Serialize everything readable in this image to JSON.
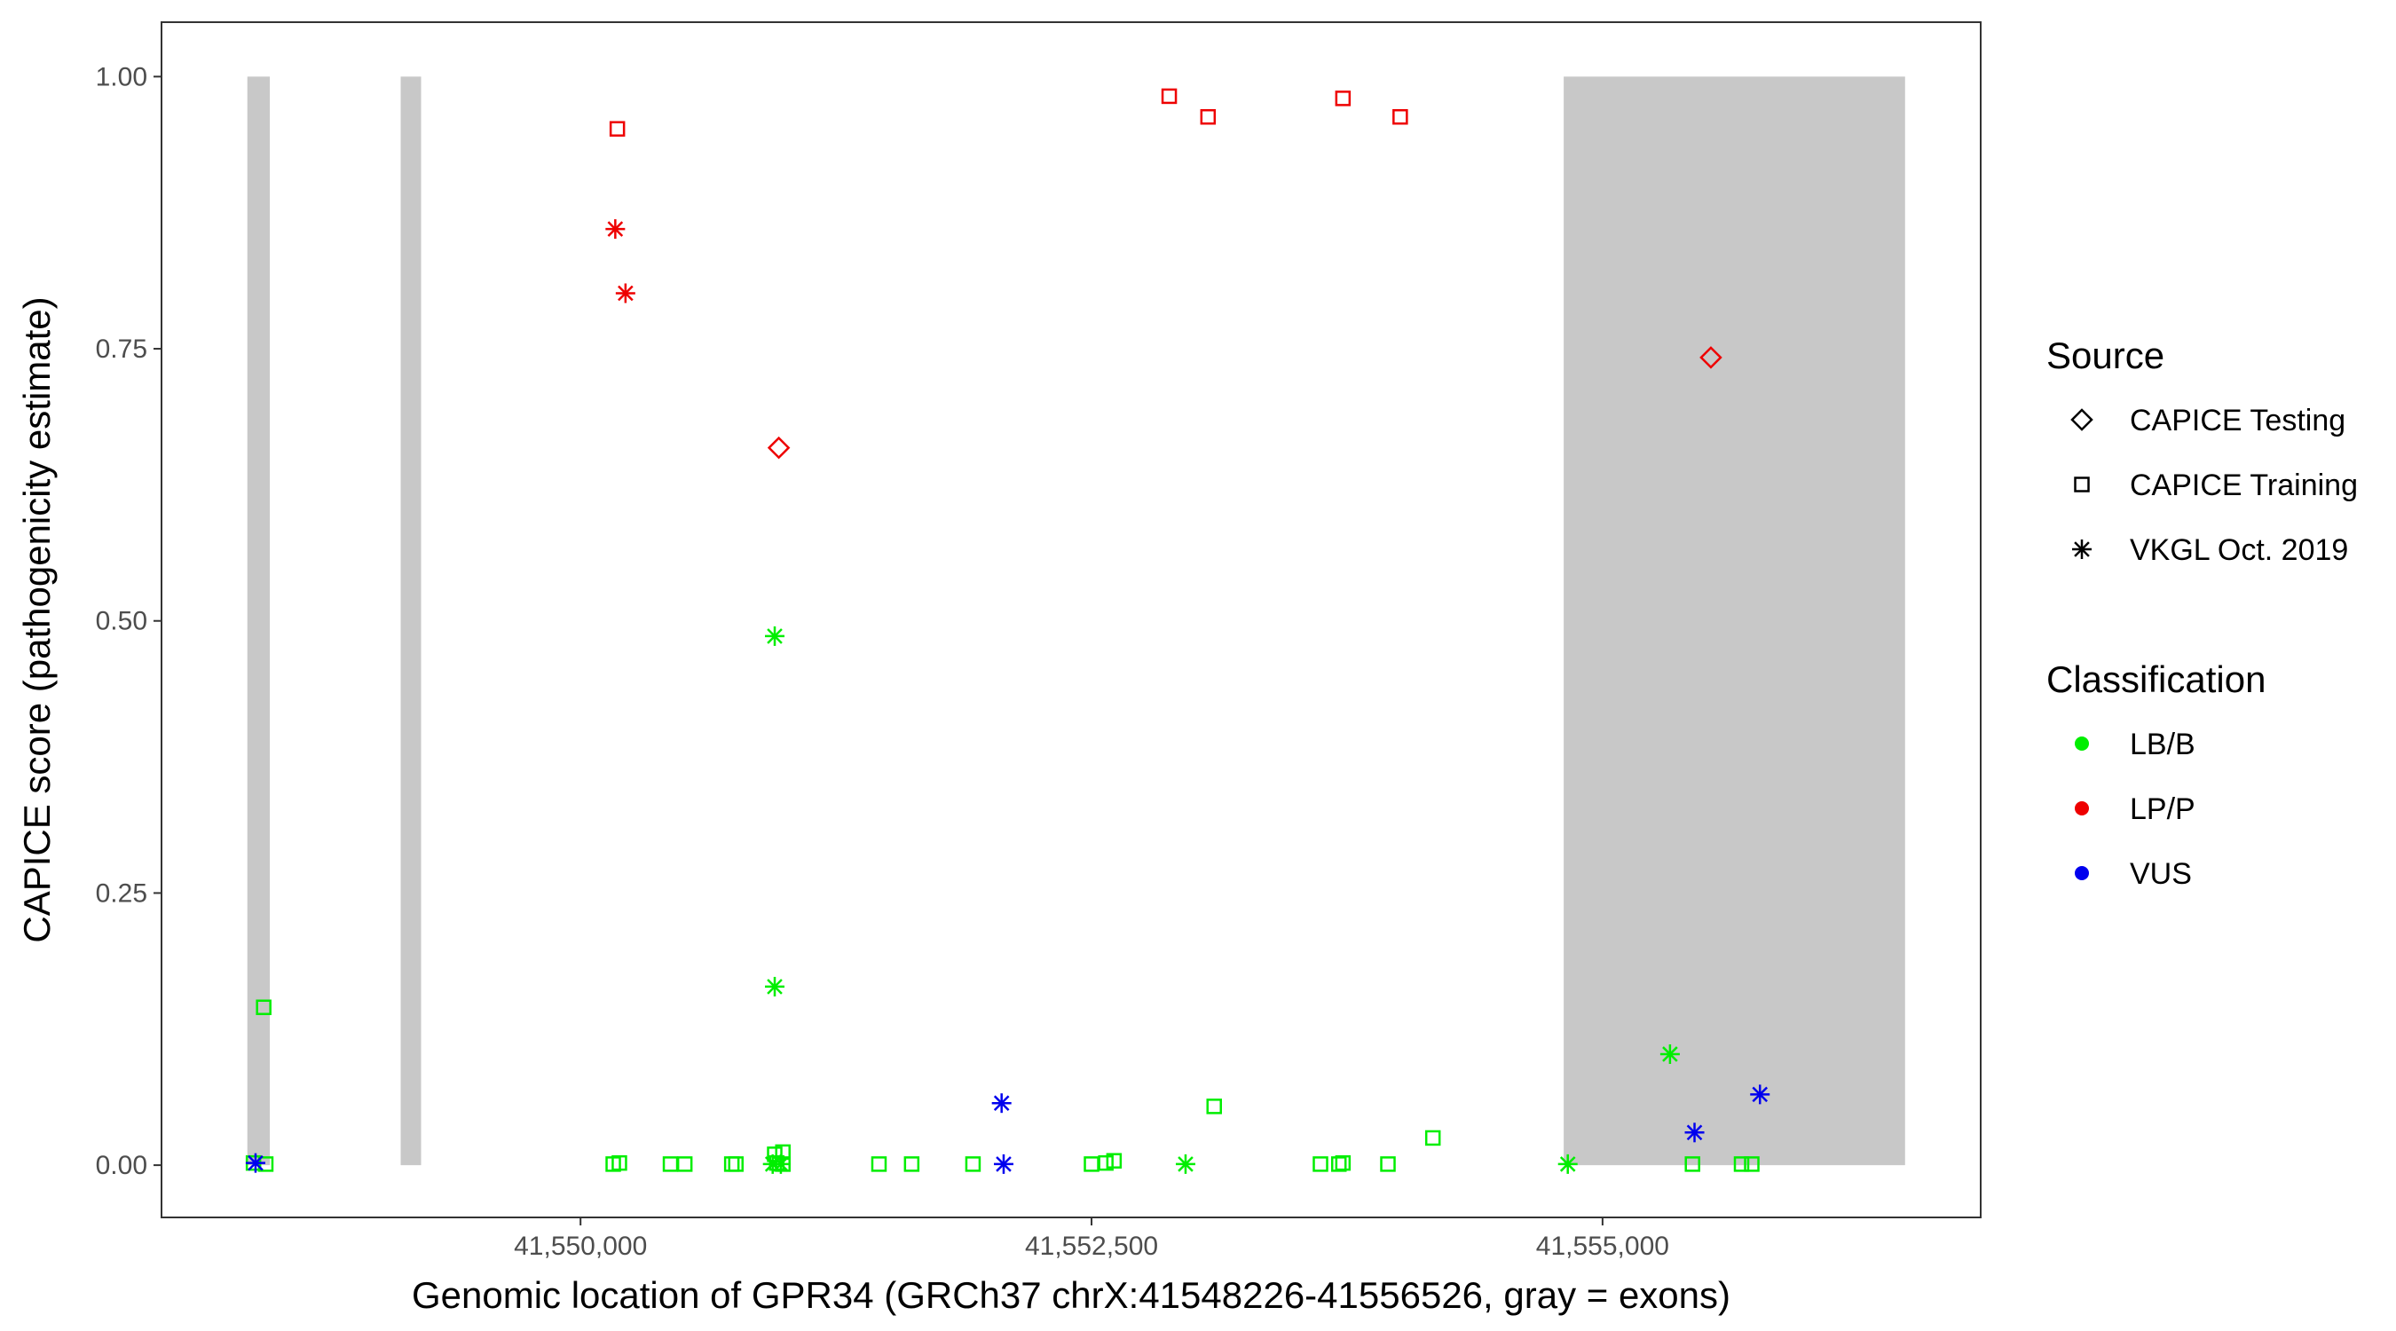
{
  "chart_data": {
    "type": "scatter",
    "title": "",
    "xlabel": "Genomic location of GPR34 (GRCh37 chrX:41548226-41556526, gray = exons)",
    "ylabel": "CAPICE score (pathogenicity estimate)",
    "xlim": [
      41547950,
      41556850
    ],
    "ylim": [
      -0.048,
      1.05
    ],
    "x_ticks": [
      41550000,
      41552500,
      41555000
    ],
    "x_tick_labels": [
      "41,550,000",
      "41,552,500",
      "41,555,000"
    ],
    "y_ticks": [
      0,
      0.25,
      0.5,
      0.75,
      1.0
    ],
    "y_tick_labels": [
      "0.00",
      "0.25",
      "0.50",
      "0.75",
      "1.00"
    ],
    "grid": false,
    "legend_position": "right",
    "exons": [
      {
        "start": 41548370,
        "end": 41548480
      },
      {
        "start": 41549120,
        "end": 41549220
      },
      {
        "start": 41554810,
        "end": 41556480
      }
    ],
    "colors": {
      "LB/B": "#00ee00",
      "LP/P": "#ee0000",
      "VUS": "#0000ee",
      "exon": "#c8c8c8"
    },
    "legend": {
      "source_title": "Source",
      "source_items": [
        {
          "label": "CAPICE Testing",
          "shape": "diamond"
        },
        {
          "label": "CAPICE Training",
          "shape": "square"
        },
        {
          "label": "VKGL Oct. 2019",
          "shape": "asterisk"
        }
      ],
      "classification_title": "Classification",
      "classification_items": [
        {
          "label": "LB/B"
        },
        {
          "label": "LP/P"
        },
        {
          "label": "VUS"
        }
      ]
    },
    "points": [
      {
        "x": 41548450,
        "y": 0.145,
        "source": "CAPICE Training",
        "class": "LB/B"
      },
      {
        "x": 41548400,
        "y": 0.002,
        "source": "CAPICE Training",
        "class": "LB/B"
      },
      {
        "x": 41548460,
        "y": 0.001,
        "source": "CAPICE Training",
        "class": "LB/B"
      },
      {
        "x": 41548410,
        "y": 0.002,
        "source": "VKGL Oct. 2019",
        "class": "VUS"
      },
      {
        "x": 41550180,
        "y": 0.952,
        "source": "CAPICE Training",
        "class": "LP/P"
      },
      {
        "x": 41550170,
        "y": 0.86,
        "source": "VKGL Oct. 2019",
        "class": "LP/P"
      },
      {
        "x": 41550220,
        "y": 0.801,
        "source": "VKGL Oct. 2019",
        "class": "LP/P"
      },
      {
        "x": 41550970,
        "y": 0.659,
        "source": "CAPICE Testing",
        "class": "LP/P"
      },
      {
        "x": 41550950,
        "y": 0.486,
        "source": "VKGL Oct. 2019",
        "class": "LB/B"
      },
      {
        "x": 41550950,
        "y": 0.164,
        "source": "VKGL Oct. 2019",
        "class": "LB/B"
      },
      {
        "x": 41550160,
        "y": 0.001,
        "source": "CAPICE Training",
        "class": "LB/B"
      },
      {
        "x": 41550190,
        "y": 0.002,
        "source": "CAPICE Training",
        "class": "LB/B"
      },
      {
        "x": 41550440,
        "y": 0.001,
        "source": "CAPICE Training",
        "class": "LB/B"
      },
      {
        "x": 41550510,
        "y": 0.001,
        "source": "CAPICE Training",
        "class": "LB/B"
      },
      {
        "x": 41550740,
        "y": 0.001,
        "source": "CAPICE Training",
        "class": "LB/B"
      },
      {
        "x": 41550760,
        "y": 0.001,
        "source": "CAPICE Training",
        "class": "LB/B"
      },
      {
        "x": 41550950,
        "y": 0.01,
        "source": "CAPICE Training",
        "class": "LB/B"
      },
      {
        "x": 41550990,
        "y": 0.012,
        "source": "CAPICE Training",
        "class": "LB/B"
      },
      {
        "x": 41550960,
        "y": 0.002,
        "source": "CAPICE Training",
        "class": "LB/B"
      },
      {
        "x": 41550990,
        "y": 0.001,
        "source": "CAPICE Training",
        "class": "LB/B"
      },
      {
        "x": 41550940,
        "y": 0.001,
        "source": "VKGL Oct. 2019",
        "class": "LB/B"
      },
      {
        "x": 41550980,
        "y": 0.001,
        "source": "VKGL Oct. 2019",
        "class": "LB/B"
      },
      {
        "x": 41551460,
        "y": 0.001,
        "source": "CAPICE Training",
        "class": "LB/B"
      },
      {
        "x": 41551620,
        "y": 0.001,
        "source": "CAPICE Training",
        "class": "LB/B"
      },
      {
        "x": 41551920,
        "y": 0.001,
        "source": "CAPICE Training",
        "class": "LB/B"
      },
      {
        "x": 41552060,
        "y": 0.057,
        "source": "VKGL Oct. 2019",
        "class": "VUS"
      },
      {
        "x": 41552070,
        "y": 0.001,
        "source": "VKGL Oct. 2019",
        "class": "VUS"
      },
      {
        "x": 41552500,
        "y": 0.001,
        "source": "CAPICE Training",
        "class": "LB/B"
      },
      {
        "x": 41552570,
        "y": 0.002,
        "source": "CAPICE Training",
        "class": "LB/B"
      },
      {
        "x": 41552610,
        "y": 0.004,
        "source": "CAPICE Training",
        "class": "LB/B"
      },
      {
        "x": 41552880,
        "y": 0.982,
        "source": "CAPICE Training",
        "class": "LP/P"
      },
      {
        "x": 41553070,
        "y": 0.963,
        "source": "CAPICE Training",
        "class": "LP/P"
      },
      {
        "x": 41552960,
        "y": 0.001,
        "source": "VKGL Oct. 2019",
        "class": "LB/B"
      },
      {
        "x": 41553100,
        "y": 0.054,
        "source": "CAPICE Training",
        "class": "LB/B"
      },
      {
        "x": 41553620,
        "y": 0.001,
        "source": "CAPICE Training",
        "class": "LB/B"
      },
      {
        "x": 41553710,
        "y": 0.001,
        "source": "CAPICE Training",
        "class": "LB/B"
      },
      {
        "x": 41553730,
        "y": 0.002,
        "source": "CAPICE Training",
        "class": "LB/B"
      },
      {
        "x": 41553730,
        "y": 0.98,
        "source": "CAPICE Training",
        "class": "LP/P"
      },
      {
        "x": 41553950,
        "y": 0.001,
        "source": "CAPICE Training",
        "class": "LB/B"
      },
      {
        "x": 41554010,
        "y": 0.963,
        "source": "CAPICE Training",
        "class": "LP/P"
      },
      {
        "x": 41554170,
        "y": 0.025,
        "source": "CAPICE Training",
        "class": "LB/B"
      },
      {
        "x": 41554830,
        "y": 0.001,
        "source": "VKGL Oct. 2019",
        "class": "LB/B"
      },
      {
        "x": 41555330,
        "y": 0.102,
        "source": "VKGL Oct. 2019",
        "class": "LB/B"
      },
      {
        "x": 41555530,
        "y": 0.742,
        "source": "CAPICE Testing",
        "class": "LP/P"
      },
      {
        "x": 41555440,
        "y": 0.001,
        "source": "CAPICE Training",
        "class": "LB/B"
      },
      {
        "x": 41555450,
        "y": 0.03,
        "source": "VKGL Oct. 2019",
        "class": "VUS"
      },
      {
        "x": 41555680,
        "y": 0.001,
        "source": "CAPICE Training",
        "class": "LB/B"
      },
      {
        "x": 41555730,
        "y": 0.001,
        "source": "CAPICE Training",
        "class": "LB/B"
      },
      {
        "x": 41555770,
        "y": 0.065,
        "source": "VKGL Oct. 2019",
        "class": "VUS"
      }
    ]
  }
}
